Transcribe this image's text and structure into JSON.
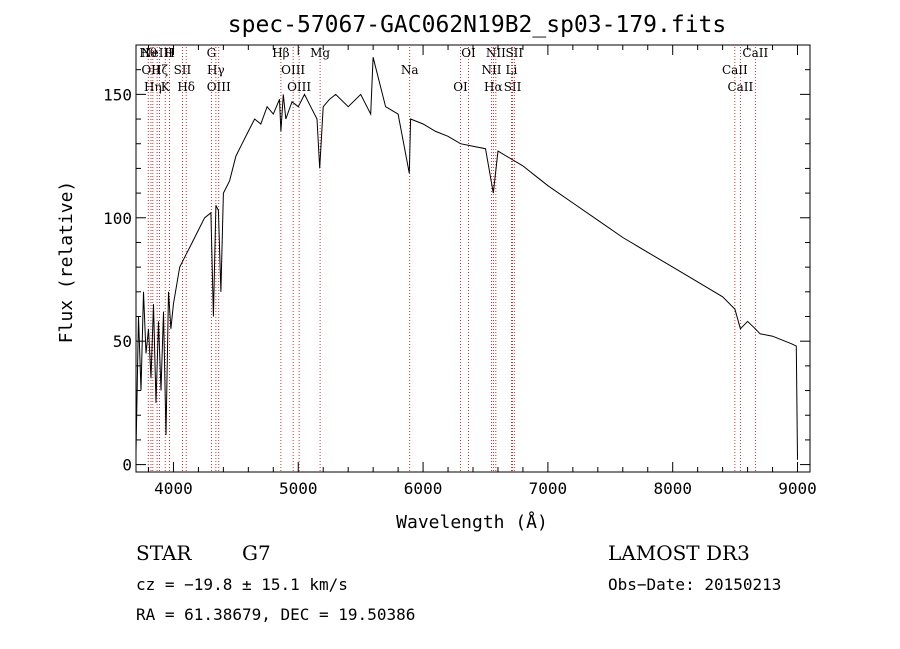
{
  "chart_data": {
    "type": "line",
    "title": "spec-57067-GAC062N19B2_sp03-179.fits",
    "xlabel": "Wavelength (Å)",
    "ylabel": "Flux (relative)",
    "xlim": [
      3700,
      9100
    ],
    "ylim": [
      -3,
      170
    ],
    "x_ticks": [
      4000,
      5000,
      6000,
      7000,
      8000,
      9000
    ],
    "y_ticks": [
      0,
      50,
      100,
      150
    ],
    "x_tick_labels": [
      "4000",
      "5000",
      "6000",
      "7000",
      "8000",
      "9000"
    ],
    "y_tick_labels": [
      "0",
      "50",
      "100",
      "150"
    ],
    "series": [
      {
        "name": "flux",
        "x": [
          3700,
          3720,
          3740,
          3760,
          3780,
          3800,
          3820,
          3840,
          3860,
          3880,
          3900,
          3920,
          3940,
          3960,
          3980,
          4000,
          4050,
          4100,
          4150,
          4200,
          4250,
          4300,
          4320,
          4340,
          4360,
          4380,
          4400,
          4450,
          4500,
          4550,
          4600,
          4650,
          4700,
          4750,
          4800,
          4850,
          4861,
          4880,
          4900,
          4950,
          5000,
          5050,
          5100,
          5150,
          5172,
          5200,
          5250,
          5300,
          5400,
          5500,
          5580,
          5600,
          5700,
          5800,
          5890,
          5900,
          6000,
          6100,
          6200,
          6300,
          6400,
          6500,
          6563,
          6600,
          6700,
          6800,
          6900,
          7000,
          7200,
          7400,
          7600,
          7800,
          8000,
          8200,
          8400,
          8498,
          8542,
          8600,
          8662,
          8700,
          8800,
          8900,
          8950,
          8990,
          9000
        ],
        "y": [
          5,
          60,
          30,
          70,
          45,
          55,
          35,
          65,
          25,
          58,
          30,
          62,
          12,
          70,
          55,
          65,
          80,
          85,
          90,
          95,
          100,
          102,
          60,
          105,
          103,
          70,
          110,
          115,
          125,
          130,
          135,
          140,
          138,
          145,
          142,
          148,
          135,
          150,
          140,
          147,
          145,
          150,
          145,
          140,
          120,
          145,
          148,
          150,
          145,
          150,
          142,
          165,
          145,
          142,
          118,
          140,
          138,
          135,
          133,
          130,
          129,
          128,
          110,
          127,
          124,
          121,
          117,
          113,
          106,
          99,
          92,
          86,
          80,
          74,
          68,
          63,
          55,
          58,
          55,
          53,
          52,
          50,
          49,
          48,
          2
        ]
      }
    ],
    "line_annotations": [
      {
        "wavelength": 3798,
        "label": "Hθ"
      },
      {
        "wavelength": 3820,
        "label": "OII"
      },
      {
        "wavelength": 3835,
        "label": "Hη"
      },
      {
        "wavelength": 3869,
        "label": "NeIII"
      },
      {
        "wavelength": 3889,
        "label": "Hζ"
      },
      {
        "wavelength": 3934,
        "label": "K"
      },
      {
        "wavelength": 3969,
        "label": "H"
      },
      {
        "wavelength": 4072,
        "label": "SII"
      },
      {
        "wavelength": 4102,
        "label": "Hδ"
      },
      {
        "wavelength": 4304,
        "label": "G"
      },
      {
        "wavelength": 4340,
        "label": "Hγ"
      },
      {
        "wavelength": 4363,
        "label": "OIII"
      },
      {
        "wavelength": 4861,
        "label": "Hβ"
      },
      {
        "wavelength": 4959,
        "label": "OIII"
      },
      {
        "wavelength": 5007,
        "label": "OIII"
      },
      {
        "wavelength": 5175,
        "label": "Mg"
      },
      {
        "wavelength": 5893,
        "label": "Na"
      },
      {
        "wavelength": 6300,
        "label": "OI"
      },
      {
        "wavelength": 6364,
        "label": "OI"
      },
      {
        "wavelength": 6548,
        "label": "NII"
      },
      {
        "wavelength": 6563,
        "label": "Hα"
      },
      {
        "wavelength": 6583,
        "label": "NII"
      },
      {
        "wavelength": 6708,
        "label": "Li"
      },
      {
        "wavelength": 6717,
        "label": "SII"
      },
      {
        "wavelength": 6731,
        "label": "SII"
      },
      {
        "wavelength": 8498,
        "label": "CaII"
      },
      {
        "wavelength": 8542,
        "label": "CaII"
      },
      {
        "wavelength": 8662,
        "label": "CaII"
      }
    ]
  },
  "info": {
    "object_class": "STAR",
    "subclass": "G7",
    "survey": "LAMOST DR3",
    "redshift_line": "cz = −19.8 ± 15.1 km/s",
    "obs_date": "Obs−Date: 20150213",
    "coords": "RA =  61.38679, DEC =  19.50386"
  },
  "colors": {
    "spectrum": "#000000",
    "line_markers": "#c00000",
    "text": "#000000"
  }
}
